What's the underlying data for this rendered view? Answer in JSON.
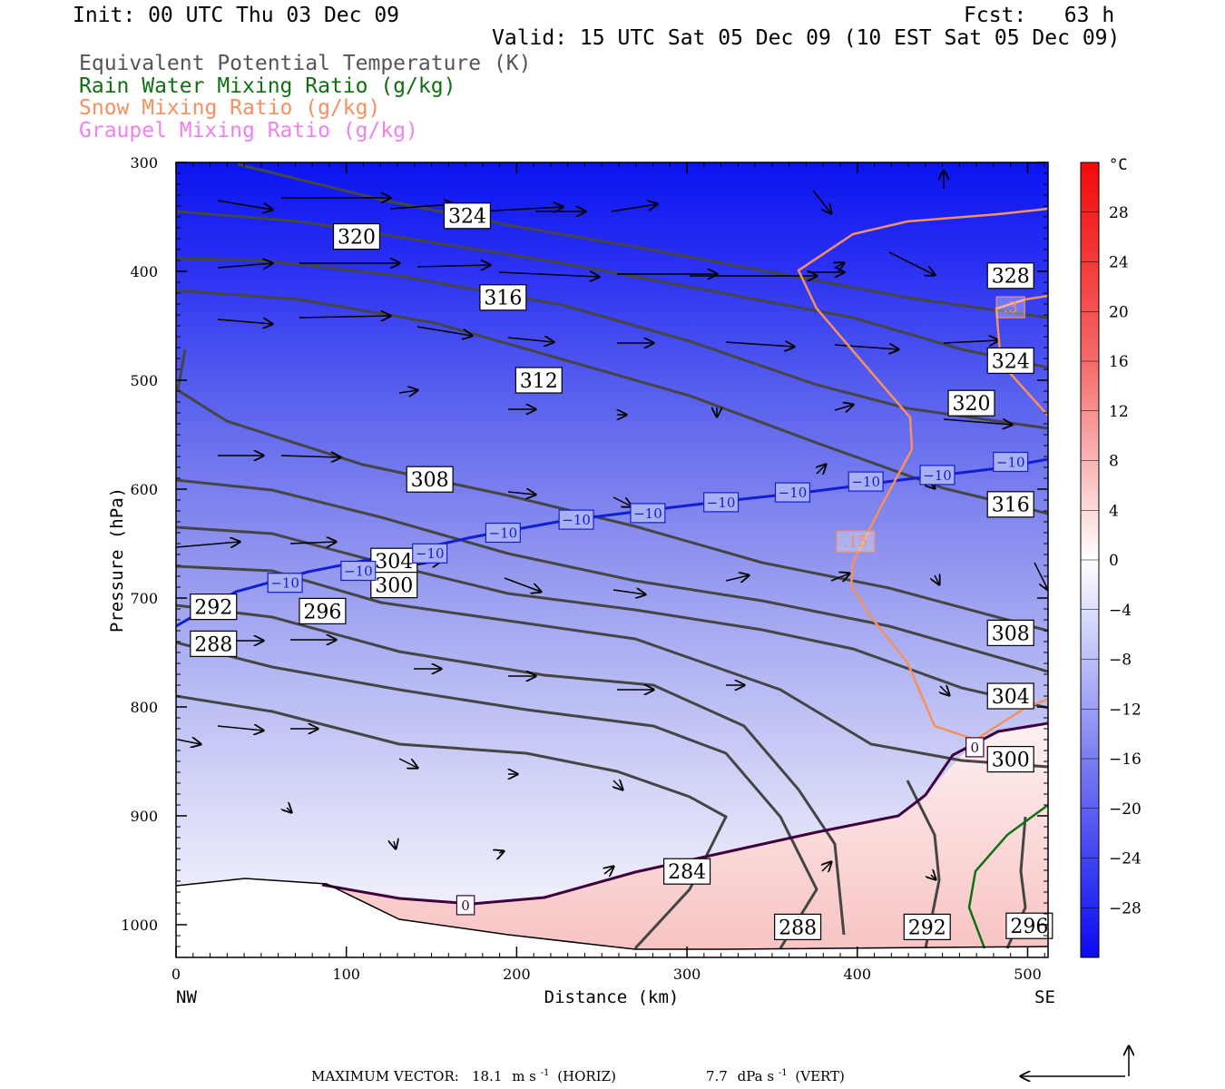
{
  "header": {
    "init": "Init: 00 UTC Thu 03 Dec 09",
    "fcst": "Fcst:   63 h",
    "valid": "Valid: 15 UTC Sat 05 Dec 09 (10 EST Sat 05 Dec 09)"
  },
  "legend": [
    {
      "label": "Equivalent Potential Temperature (K)",
      "color": "#555555"
    },
    {
      "label": "Rain Water Mixing Ratio (g/kg)",
      "color": "#107010"
    },
    {
      "label": "Snow Mixing Ratio (g/kg)",
      "color": "#f59060"
    },
    {
      "label": "Graupel Mixing Ratio (g/kg)",
      "color": "#f080f0"
    }
  ],
  "chart_data": {
    "type": "cross-section",
    "xlabel": "Distance (km)",
    "ylabel": "Pressure (hPa)",
    "xlim": [
      0,
      512
    ],
    "ylim": [
      1030,
      300
    ],
    "x_ticks": [
      "0",
      "100",
      "200",
      "300",
      "400",
      "500"
    ],
    "x_tick_values": [
      0,
      100,
      200,
      300,
      400,
      500
    ],
    "y_ticks": [
      "300",
      "400",
      "500",
      "600",
      "700",
      "800",
      "900",
      "1000"
    ],
    "y_tick_values": [
      300,
      400,
      500,
      600,
      700,
      800,
      900,
      1000
    ],
    "x_end_labels": {
      "left": "NW",
      "right": "SE"
    },
    "colorbar": {
      "unit": "°C",
      "labels": [
        "28",
        "24",
        "20",
        "16",
        "12",
        "8",
        "4",
        "0",
        "−4",
        "−8",
        "−12",
        "−16",
        "−20",
        "−24",
        "−28"
      ],
      "values": [
        28,
        24,
        20,
        16,
        12,
        8,
        4,
        0,
        -4,
        -8,
        -12,
        -16,
        -20,
        -24,
        -28
      ],
      "range": [
        -32,
        32
      ]
    },
    "theta_e_labels": [
      {
        "text": "324",
        "x": 171,
        "p": 349
      },
      {
        "text": "320",
        "x": 106,
        "p": 368
      },
      {
        "text": "316",
        "x": 192,
        "p": 424
      },
      {
        "text": "312",
        "x": 213,
        "p": 500
      },
      {
        "text": "308",
        "x": 149,
        "p": 591
      },
      {
        "text": "304",
        "x": 128,
        "p": 666
      },
      {
        "text": "300",
        "x": 128,
        "p": 688
      },
      {
        "text": "296",
        "x": 86,
        "p": 712
      },
      {
        "text": "292",
        "x": 22,
        "p": 708
      },
      {
        "text": "288",
        "x": 22,
        "p": 742
      },
      {
        "text": "284",
        "x": 300,
        "p": 951
      },
      {
        "text": "288",
        "x": 365,
        "p": 1002
      },
      {
        "text": "292",
        "x": 441,
        "p": 1002
      },
      {
        "text": "296",
        "x": 501,
        "p": 1001
      },
      {
        "text": "328",
        "x": 490,
        "p": 404
      },
      {
        "text": "324",
        "x": 490,
        "p": 482
      },
      {
        "text": "320",
        "x": 467,
        "p": 521
      },
      {
        "text": "316",
        "x": 490,
        "p": 614
      },
      {
        "text": "308",
        "x": 490,
        "p": 732
      },
      {
        "text": "304",
        "x": 490,
        "p": 790
      },
      {
        "text": "300",
        "x": 490,
        "p": 848
      }
    ],
    "isotherm_labels": [
      {
        "text": "−10",
        "x": 64,
        "p": 686
      },
      {
        "text": "−10",
        "x": 107,
        "p": 675
      },
      {
        "text": "−10",
        "x": 149,
        "p": 659
      },
      {
        "text": "−10",
        "x": 192,
        "p": 640
      },
      {
        "text": "−10",
        "x": 235,
        "p": 628
      },
      {
        "text": "−10",
        "x": 277,
        "p": 622
      },
      {
        "text": "−10",
        "x": 320,
        "p": 612
      },
      {
        "text": "−10",
        "x": 362,
        "p": 603
      },
      {
        "text": "−10",
        "x": 405,
        "p": 593
      },
      {
        "text": "−10",
        "x": 447,
        "p": 587
      },
      {
        "text": "−10",
        "x": 490,
        "p": 575
      },
      {
        "text": "0",
        "x": 170,
        "p": 982
      },
      {
        "text": "0",
        "x": 469,
        "p": 837
      }
    ],
    "snow_labels": [
      {
        "text": ".3",
        "x": 490,
        "p": 433
      },
      {
        "text": ".15",
        "x": 399,
        "p": 648
      }
    ],
    "footer_vector": {
      "label": "MAXIMUM VECTOR:",
      "horiz_value": "18.1",
      "horiz_unit": "m s",
      "horiz_exp": "-1",
      "horiz_tag": "(HORIZ)",
      "vert_value": "7.7",
      "vert_unit": "dPa s",
      "vert_exp": "-1",
      "vert_tag": "(VERT)"
    }
  }
}
